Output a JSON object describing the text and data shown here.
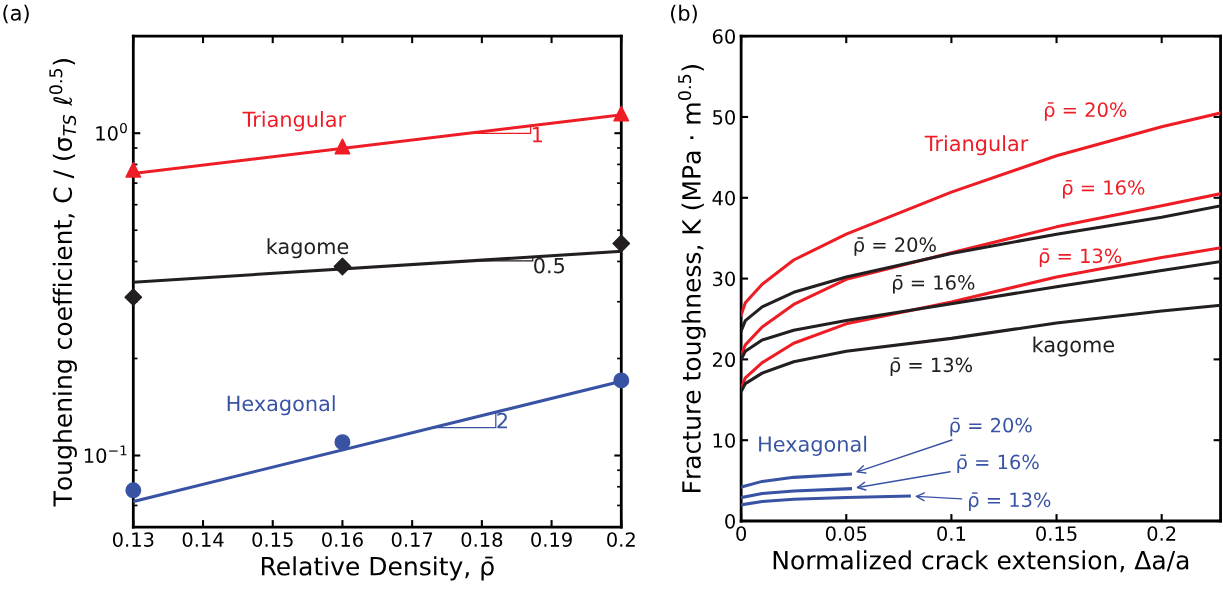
{
  "chart_data": [
    {
      "type": "scatter",
      "title": "(a)",
      "xlabel": "Relative Density, ρ̄",
      "ylabel": "Toughening coefficient, C / (σ$_{TS}$ ℓ$^{0.5}$)",
      "log": "y",
      "xlim": [
        0.13,
        0.2
      ],
      "ylim": [
        0.06,
        2
      ],
      "xticks": [
        0.13,
        0.14,
        0.15,
        0.16,
        0.17,
        0.18,
        0.19,
        {
          "value": 0.2,
          "label": "0.2"
        }
      ],
      "yticks": [
        {
          "value": 0.1,
          "label": "10$^{−1}$"
        },
        {
          "value": 1,
          "label": "10$^{0}$"
        }
      ],
      "grid": false,
      "series": [
        {
          "type": "scatter",
          "marker": "triangle",
          "color": "#ee1c25",
          "x": [
            0.13,
            0.16,
            0.2
          ],
          "values": [
            0.77,
            0.91,
            1.15
          ]
        },
        {
          "type": "line",
          "marker": "none",
          "color": "#ee1c25",
          "x": [
            0.13,
            0.2
          ],
          "values": [
            0.75,
            1.14
          ]
        },
        {
          "type": "scatter",
          "marker": "diamond",
          "color": "#231f20",
          "x": [
            0.13,
            0.16,
            0.2
          ],
          "values": [
            0.31,
            0.386,
            0.455
          ]
        },
        {
          "type": "line",
          "marker": "none",
          "color": "#231f20",
          "x": [
            0.13,
            0.2
          ],
          "values": [
            0.345,
            0.43
          ]
        },
        {
          "type": "scatter",
          "marker": "circle",
          "color": "#3953a4",
          "x": [
            0.13,
            0.16,
            0.2
          ],
          "values": [
            0.078,
            0.11,
            0.171
          ]
        },
        {
          "type": "line",
          "marker": "none",
          "color": "#3953a4",
          "x": [
            0.13,
            0.2
          ],
          "values": [
            0.072,
            0.17
          ]
        }
      ],
      "annotations": [
        "Triangular",
        "kagome",
        "Hexagonal",
        {
          "text": "1",
          "x": 0.187,
          "y": 1.05
        },
        {
          "text": "0.5",
          "x": 0.1873,
          "y": 0.412
        },
        {
          "text": "2",
          "x": 0.182,
          "y": 0.136
        }
      ]
    },
    {
      "type": "line",
      "title": "(b)",
      "xlabel": "Normalized crack extension, Δa/a",
      "ylabel": "Fracture toughness, K (MPa · m$^{0.5}$)",
      "xlim": [
        0,
        0.228
      ],
      "ylim": [
        0,
        60
      ],
      "xticks": [
        0,
        0.05,
        0.1,
        0.15,
        0.2
      ],
      "yticks": [
        0,
        10,
        20,
        30,
        40,
        50,
        60
      ],
      "grid": false,
      "marker": "none",
      "series": [
        {
          "name": "ρ̄ = 20%",
          "color": "#ee1c25",
          "x": [
            0,
            0.002,
            0.01,
            0.025,
            0.05,
            0.1,
            0.15,
            0.2,
            0.228
          ],
          "values": [
            25.5,
            27.0,
            29.3,
            32.3,
            35.5,
            40.7,
            45.2,
            48.8,
            50.5
          ]
        },
        {
          "name": "ρ̄ = 16%",
          "color": "#ee1c25",
          "x": [
            0,
            0.002,
            0.01,
            0.025,
            0.05,
            0.1,
            0.15,
            0.2,
            0.228
          ],
          "values": [
            20.5,
            21.8,
            24.0,
            26.8,
            29.9,
            33.2,
            36.4,
            39.0,
            40.5
          ]
        },
        {
          "name": "ρ̄ = 13%",
          "color": "#ee1c25",
          "x": [
            0,
            0.002,
            0.01,
            0.025,
            0.05,
            0.1,
            0.15,
            0.2,
            0.228
          ],
          "values": [
            16.5,
            17.7,
            19.6,
            22.0,
            24.4,
            27.1,
            30.2,
            32.6,
            33.8
          ]
        },
        {
          "name": "ρ̄ = 20%",
          "color": "#231f20",
          "x": [
            0,
            0.002,
            0.01,
            0.025,
            0.05,
            0.1,
            0.15,
            0.2,
            0.228
          ],
          "values": [
            23.5,
            24.8,
            26.5,
            28.3,
            30.2,
            33.1,
            35.5,
            37.6,
            39.0
          ]
        },
        {
          "name": "ρ̄ = 16%",
          "color": "#231f20",
          "x": [
            0,
            0.002,
            0.01,
            0.025,
            0.05,
            0.1,
            0.15,
            0.2,
            0.228
          ],
          "values": [
            20.0,
            21.0,
            22.4,
            23.6,
            24.8,
            26.9,
            29.0,
            31.0,
            32.1
          ]
        },
        {
          "name": "ρ̄ = 13%",
          "color": "#231f20",
          "x": [
            0,
            0.002,
            0.01,
            0.025,
            0.05,
            0.1,
            0.15,
            0.2,
            0.228
          ],
          "values": [
            16.0,
            17.0,
            18.3,
            19.7,
            21.0,
            22.6,
            24.5,
            26.0,
            26.7
          ]
        },
        {
          "name": "ρ̄ = 20%",
          "color": "#3953a4",
          "x": [
            0,
            0.01,
            0.025,
            0.052
          ],
          "values": [
            4.2,
            4.9,
            5.4,
            5.8
          ]
        },
        {
          "name": "ρ̄ = 16%",
          "color": "#3953a4",
          "x": [
            0,
            0.01,
            0.025,
            0.052
          ],
          "values": [
            2.9,
            3.4,
            3.7,
            4.0
          ]
        },
        {
          "name": "ρ̄ = 13%",
          "color": "#3953a4",
          "x": [
            0,
            0.01,
            0.025,
            0.05,
            0.08
          ],
          "values": [
            2.0,
            2.4,
            2.7,
            2.9,
            3.1
          ]
        }
      ],
      "annotations": [
        "Triangular",
        "kagome",
        "Hexagonal"
      ]
    }
  ]
}
